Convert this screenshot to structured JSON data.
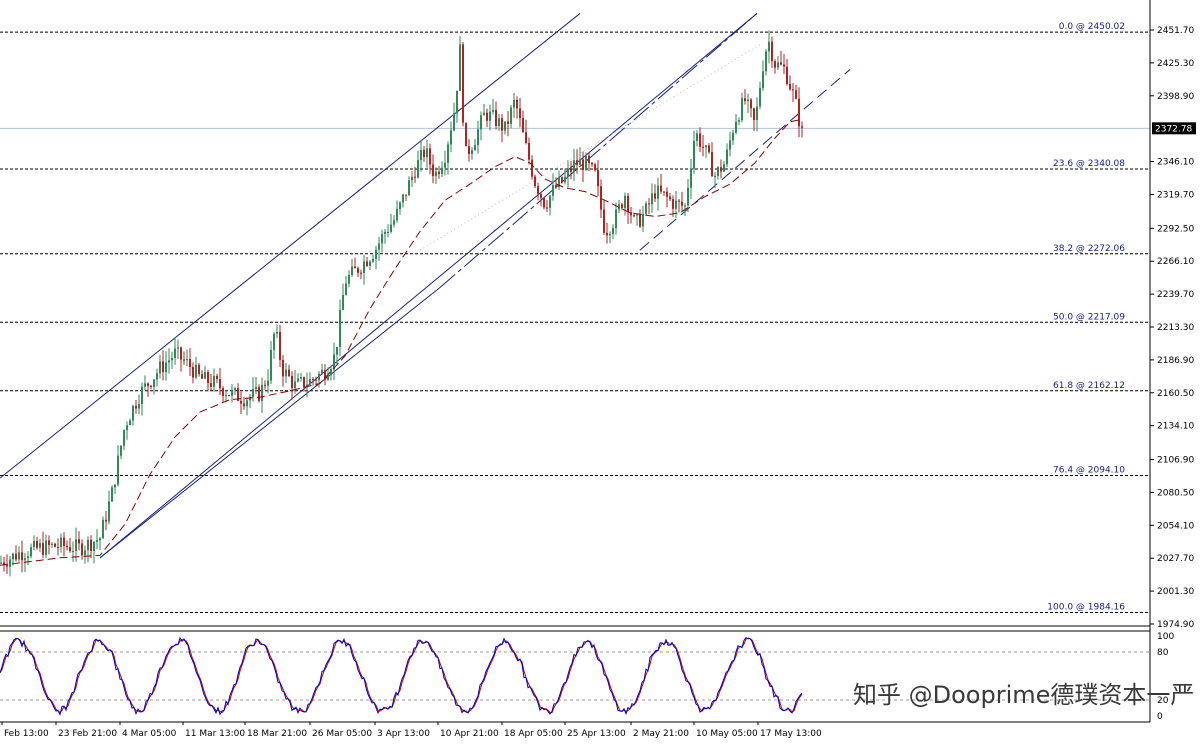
{
  "chart_data": [
    {
      "type": "candlestick",
      "ylim": [
        1971.3,
        2465.0
      ],
      "y_ticks": [
        "2451.70",
        "2425.30",
        "2398.90",
        "2372.78",
        "2346.10",
        "2319.70",
        "2292.50",
        "2266.10",
        "2239.70",
        "2213.30",
        "2186.90",
        "2160.50",
        "2134.10",
        "2106.90",
        "2080.50",
        "2054.10",
        "2027.70",
        "2001.30",
        "1974.90"
      ],
      "current_price": "2372.78",
      "x_labels": [
        "Feb 13:00",
        "23 Feb 21:00",
        "4 Mar 05:00",
        "11 Mar 13:00",
        "18 Mar 21:00",
        "26 Mar 05:00",
        "3 Apr 13:00",
        "10 Apr 21:00",
        "18 Apr 05:00",
        "25 Apr 13:00",
        "2 May 21:00",
        "10 May 05:00",
        "17 May 13:00"
      ],
      "fib_levels": [
        {
          "label": "0.0 @ 2450.02",
          "value": 2450.02
        },
        {
          "label": "23.6 @ 2340.08",
          "value": 2340.08
        },
        {
          "label": "38.2 @ 2272.06",
          "value": 2272.06
        },
        {
          "label": "50.0 @ 2217.09",
          "value": 2217.09
        },
        {
          "label": "61.8 @ 2162.12",
          "value": 2162.12
        },
        {
          "label": "76.4 @ 2094.10",
          "value": 2094.1
        },
        {
          "label": "100.0 @ 1984.16",
          "value": 1984.16
        }
      ],
      "price_path": [
        [
          0,
          2024
        ],
        [
          20,
          2032
        ],
        [
          40,
          2036
        ],
        [
          60,
          2038
        ],
        [
          80,
          2036
        ],
        [
          100,
          2044
        ],
        [
          112,
          2080
        ],
        [
          125,
          2135
        ],
        [
          140,
          2160
        ],
        [
          160,
          2180
        ],
        [
          175,
          2192
        ],
        [
          190,
          2182
        ],
        [
          200,
          2172
        ],
        [
          215,
          2168
        ],
        [
          230,
          2160
        ],
        [
          245,
          2156
        ],
        [
          260,
          2160
        ],
        [
          268,
          2175
        ],
        [
          275,
          2212
        ],
        [
          282,
          2180
        ],
        [
          295,
          2166
        ],
        [
          310,
          2170
        ],
        [
          325,
          2178
        ],
        [
          335,
          2190
        ],
        [
          345,
          2250
        ],
        [
          360,
          2262
        ],
        [
          375,
          2275
        ],
        [
          385,
          2290
        ],
        [
          395,
          2300
        ],
        [
          405,
          2320
        ],
        [
          415,
          2340
        ],
        [
          425,
          2355
        ],
        [
          435,
          2335
        ],
        [
          445,
          2352
        ],
        [
          455,
          2390
        ],
        [
          460,
          2435
        ],
        [
          465,
          2350
        ],
        [
          475,
          2365
        ],
        [
          485,
          2385
        ],
        [
          495,
          2380
        ],
        [
          505,
          2372
        ],
        [
          515,
          2395
        ],
        [
          525,
          2360
        ],
        [
          535,
          2330
        ],
        [
          545,
          2312
        ],
        [
          555,
          2325
        ],
        [
          565,
          2332
        ],
        [
          575,
          2345
        ],
        [
          585,
          2345
        ],
        [
          595,
          2335
        ],
        [
          605,
          2290
        ],
        [
          615,
          2300
        ],
        [
          625,
          2320
        ],
        [
          635,
          2295
        ],
        [
          645,
          2305
        ],
        [
          655,
          2322
        ],
        [
          665,
          2318
        ],
        [
          675,
          2312
        ],
        [
          685,
          2310
        ],
        [
          695,
          2370
        ],
        [
          705,
          2355
        ],
        [
          715,
          2335
        ],
        [
          725,
          2345
        ],
        [
          735,
          2380
        ],
        [
          745,
          2395
        ],
        [
          755,
          2375
        ],
        [
          762,
          2420
        ],
        [
          768,
          2445
        ],
        [
          775,
          2425
        ],
        [
          785,
          2420
        ],
        [
          795,
          2395
        ],
        [
          803,
          2365
        ]
      ],
      "ma_path": [
        [
          0,
          2022
        ],
        [
          60,
          2028
        ],
        [
          100,
          2030
        ],
        [
          125,
          2055
        ],
        [
          150,
          2095
        ],
        [
          175,
          2125
        ],
        [
          200,
          2145
        ],
        [
          230,
          2155
        ],
        [
          260,
          2157
        ],
        [
          290,
          2162
        ],
        [
          320,
          2168
        ],
        [
          345,
          2190
        ],
        [
          370,
          2228
        ],
        [
          395,
          2260
        ],
        [
          420,
          2290
        ],
        [
          445,
          2315
        ],
        [
          470,
          2328
        ],
        [
          495,
          2342
        ],
        [
          515,
          2350
        ],
        [
          530,
          2345
        ],
        [
          545,
          2332
        ],
        [
          565,
          2325
        ],
        [
          585,
          2322
        ],
        [
          605,
          2315
        ],
        [
          630,
          2305
        ],
        [
          655,
          2302
        ],
        [
          680,
          2305
        ],
        [
          705,
          2318
        ],
        [
          730,
          2328
        ],
        [
          755,
          2345
        ],
        [
          775,
          2365
        ],
        [
          790,
          2378
        ],
        [
          802,
          2380
        ]
      ],
      "channels": [
        {
          "name": "upper",
          "from": [
            0,
            2092
          ],
          "to": [
            580,
            2465
          ]
        },
        {
          "name": "middle",
          "from": [
            100,
            2028
          ],
          "to": [
            757,
            2465
          ]
        },
        {
          "name": "lower",
          "from": [
            640,
            2275
          ],
          "to": [
            850,
            2420
          ]
        }
      ]
    },
    {
      "type": "line",
      "indicator": "stochastic",
      "ylim": [
        0,
        100
      ],
      "y_ticks": [
        "100",
        "80",
        "20",
        "0"
      ],
      "levels": [
        80,
        20
      ]
    }
  ],
  "watermark": "知乎 @Dooprime德璞资本一严",
  "colors": {
    "background": "#ffffff",
    "bull": "#2e8b57",
    "bear": "#b22222",
    "channel": "#1a237e",
    "ma": "#8b0000",
    "fib": "#000000",
    "current_price_line": "#b0c4de",
    "stoch_main": "#0000cc",
    "stoch_signal": "#cc0000",
    "price_label_bg": "#000000"
  }
}
